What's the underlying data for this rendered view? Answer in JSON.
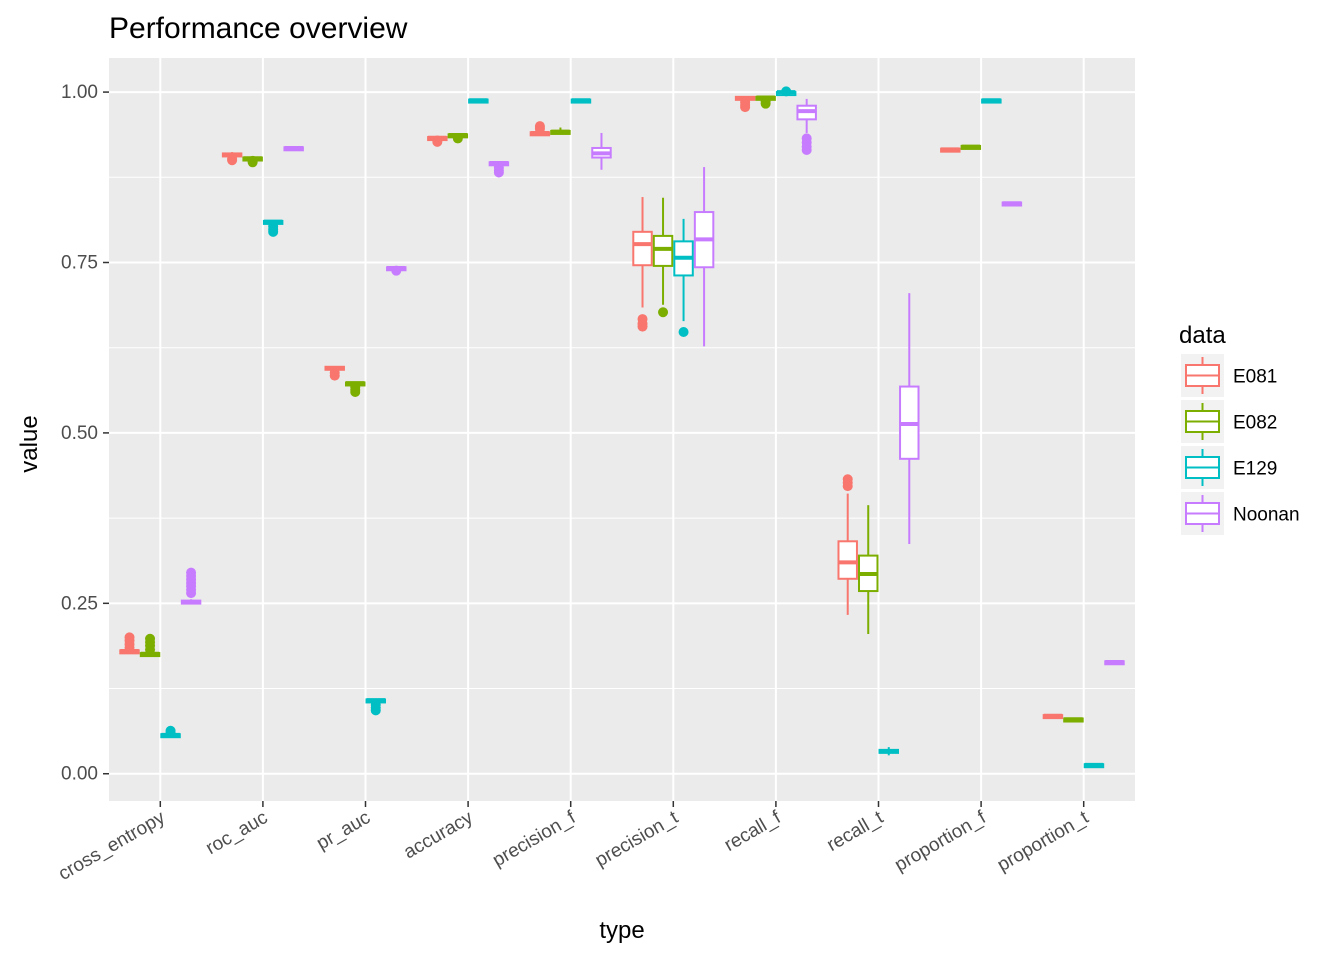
{
  "chart_data": {
    "type": "box",
    "title": "Performance overview",
    "xlabel": "type",
    "ylabel": "value",
    "ylim": [
      -0.04,
      1.05
    ],
    "yticks": [
      0.0,
      0.25,
      0.5,
      0.75,
      1.0
    ],
    "ytick_labels": [
      "0.00",
      "0.25",
      "0.50",
      "0.75",
      "1.00"
    ],
    "grid": true,
    "legend": {
      "title": "data",
      "placement": "right"
    },
    "categories": [
      "cross_entropy",
      "roc_auc",
      "pr_auc",
      "accuracy",
      "precision_f",
      "precision_t",
      "recall_f",
      "recall_t",
      "proportion_f",
      "proportion_t"
    ],
    "series": [
      {
        "name": "E081",
        "color": "#F8766D",
        "boxes": [
          {
            "category": "cross_entropy",
            "q1": 0.179,
            "median": 0.18,
            "q3": 0.181,
            "min": 0.179,
            "max": 0.183,
            "outliers": [
              0.185,
              0.19,
              0.195,
              0.2
            ]
          },
          {
            "category": "roc_auc",
            "q1": 0.906,
            "median": 0.908,
            "q3": 0.91,
            "min": 0.905,
            "max": 0.912,
            "outliers": [
              0.902,
              0.9
            ]
          },
          {
            "category": "pr_auc",
            "q1": 0.593,
            "median": 0.595,
            "q3": 0.597,
            "min": 0.592,
            "max": 0.598,
            "outliers": [
              0.588,
              0.584
            ]
          },
          {
            "category": "accuracy",
            "q1": 0.932,
            "median": 0.933,
            "q3": 0.934,
            "min": 0.931,
            "max": 0.935,
            "outliers": [
              0.929,
              0.927
            ]
          },
          {
            "category": "precision_f",
            "q1": 0.939,
            "median": 0.94,
            "q3": 0.941,
            "min": 0.938,
            "max": 0.942,
            "outliers": [
              0.946,
              0.95
            ]
          },
          {
            "category": "precision_t",
            "q1": 0.746,
            "median": 0.777,
            "q3": 0.795,
            "min": 0.684,
            "max": 0.846,
            "outliers": [
              0.667,
              0.66,
              0.656
            ]
          },
          {
            "category": "recall_f",
            "q1": 0.989,
            "median": 0.991,
            "q3": 0.993,
            "min": 0.988,
            "max": 0.994,
            "outliers": [
              0.985,
              0.981,
              0.978
            ]
          },
          {
            "category": "recall_t",
            "q1": 0.286,
            "median": 0.31,
            "q3": 0.341,
            "min": 0.233,
            "max": 0.411,
            "outliers": [
              0.422,
              0.427,
              0.432
            ]
          },
          {
            "category": "proportion_f",
            "q1": 0.915,
            "median": 0.916,
            "q3": 0.917,
            "min": 0.914,
            "max": 0.918,
            "outliers": []
          },
          {
            "category": "proportion_t",
            "q1": 0.084,
            "median": 0.085,
            "q3": 0.086,
            "min": 0.083,
            "max": 0.087,
            "outliers": []
          }
        ]
      },
      {
        "name": "E082",
        "color": "#7CAE00",
        "boxes": [
          {
            "category": "cross_entropy",
            "q1": 0.175,
            "median": 0.176,
            "q3": 0.177,
            "min": 0.174,
            "max": 0.179,
            "outliers": [
              0.182,
              0.188,
              0.193,
              0.198
            ]
          },
          {
            "category": "roc_auc",
            "q1": 0.902,
            "median": 0.903,
            "q3": 0.904,
            "min": 0.901,
            "max": 0.905,
            "outliers": [
              0.899,
              0.897
            ]
          },
          {
            "category": "pr_auc",
            "q1": 0.572,
            "median": 0.573,
            "q3": 0.574,
            "min": 0.571,
            "max": 0.575,
            "outliers": [
              0.567,
              0.563,
              0.56
            ]
          },
          {
            "category": "accuracy",
            "q1": 0.936,
            "median": 0.937,
            "q3": 0.938,
            "min": 0.935,
            "max": 0.939,
            "outliers": [
              0.932
            ]
          },
          {
            "category": "precision_f",
            "q1": 0.941,
            "median": 0.942,
            "q3": 0.943,
            "min": 0.94,
            "max": 0.948,
            "outliers": []
          },
          {
            "category": "precision_t",
            "q1": 0.745,
            "median": 0.77,
            "q3": 0.789,
            "min": 0.688,
            "max": 0.845,
            "outliers": [
              0.677
            ]
          },
          {
            "category": "recall_f",
            "q1": 0.991,
            "median": 0.992,
            "q3": 0.993,
            "min": 0.99,
            "max": 0.994,
            "outliers": [
              0.986,
              0.983
            ]
          },
          {
            "category": "recall_t",
            "q1": 0.268,
            "median": 0.293,
            "q3": 0.32,
            "min": 0.205,
            "max": 0.394,
            "outliers": []
          },
          {
            "category": "proportion_f",
            "q1": 0.919,
            "median": 0.92,
            "q3": 0.921,
            "min": 0.918,
            "max": 0.922,
            "outliers": []
          },
          {
            "category": "proportion_t",
            "q1": 0.079,
            "median": 0.08,
            "q3": 0.081,
            "min": 0.078,
            "max": 0.082,
            "outliers": []
          }
        ]
      },
      {
        "name": "E129",
        "color": "#00BFC4",
        "boxes": [
          {
            "category": "cross_entropy",
            "q1": 0.056,
            "median": 0.057,
            "q3": 0.058,
            "min": 0.055,
            "max": 0.059,
            "outliers": [
              0.061,
              0.063
            ]
          },
          {
            "category": "roc_auc",
            "q1": 0.809,
            "median": 0.81,
            "q3": 0.811,
            "min": 0.808,
            "max": 0.812,
            "outliers": [
              0.803,
              0.799,
              0.795
            ]
          },
          {
            "category": "pr_auc",
            "q1": 0.107,
            "median": 0.108,
            "q3": 0.109,
            "min": 0.106,
            "max": 0.11,
            "outliers": [
              0.101,
              0.097,
              0.093
            ]
          },
          {
            "category": "accuracy",
            "q1": 0.987,
            "median": 0.988,
            "q3": 0.989,
            "min": 0.986,
            "max": 0.99,
            "outliers": []
          },
          {
            "category": "precision_f",
            "q1": 0.987,
            "median": 0.988,
            "q3": 0.989,
            "min": 0.986,
            "max": 0.99,
            "outliers": []
          },
          {
            "category": "precision_t",
            "q1": 0.731,
            "median": 0.757,
            "q3": 0.781,
            "min": 0.664,
            "max": 0.814,
            "outliers": [
              0.648
            ]
          },
          {
            "category": "recall_f",
            "q1": 0.999,
            "median": 1.0,
            "q3": 1.0,
            "min": 0.998,
            "max": 1.0,
            "outliers": [
              1.001
            ]
          },
          {
            "category": "recall_t",
            "q1": 0.031,
            "median": 0.033,
            "q3": 0.035,
            "min": 0.027,
            "max": 0.039,
            "outliers": []
          },
          {
            "category": "proportion_f",
            "q1": 0.987,
            "median": 0.988,
            "q3": 0.989,
            "min": 0.986,
            "max": 0.99,
            "outliers": []
          },
          {
            "category": "proportion_t",
            "q1": 0.012,
            "median": 0.013,
            "q3": 0.014,
            "min": 0.011,
            "max": 0.015,
            "outliers": []
          }
        ]
      },
      {
        "name": "Noonan",
        "color": "#C77CFF",
        "boxes": [
          {
            "category": "cross_entropy",
            "q1": 0.25,
            "median": 0.252,
            "q3": 0.254,
            "min": 0.249,
            "max": 0.256,
            "outliers": [
              0.265,
              0.27,
              0.275,
              0.28,
              0.285,
              0.29,
              0.295
            ]
          },
          {
            "category": "roc_auc",
            "q1": 0.917,
            "median": 0.918,
            "q3": 0.919,
            "min": 0.916,
            "max": 0.92,
            "outliers": []
          },
          {
            "category": "pr_auc",
            "q1": 0.741,
            "median": 0.742,
            "q3": 0.743,
            "min": 0.74,
            "max": 0.744,
            "outliers": [
              0.738
            ]
          },
          {
            "category": "accuracy",
            "q1": 0.895,
            "median": 0.896,
            "q3": 0.897,
            "min": 0.894,
            "max": 0.898,
            "outliers": [
              0.889,
              0.885,
              0.882
            ]
          },
          {
            "category": "precision_f",
            "q1": 0.904,
            "median": 0.91,
            "q3": 0.918,
            "min": 0.886,
            "max": 0.94,
            "outliers": []
          },
          {
            "category": "precision_t",
            "q1": 0.743,
            "median": 0.784,
            "q3": 0.824,
            "min": 0.627,
            "max": 0.89,
            "outliers": []
          },
          {
            "category": "recall_f",
            "q1": 0.96,
            "median": 0.972,
            "q3": 0.98,
            "min": 0.94,
            "max": 0.99,
            "outliers": [
              0.932,
              0.926,
              0.92,
              0.915
            ]
          },
          {
            "category": "recall_t",
            "q1": 0.462,
            "median": 0.513,
            "q3": 0.568,
            "min": 0.337,
            "max": 0.705,
            "outliers": []
          },
          {
            "category": "proportion_f",
            "q1": 0.836,
            "median": 0.837,
            "q3": 0.838,
            "min": 0.835,
            "max": 0.839,
            "outliers": []
          },
          {
            "category": "proportion_t",
            "q1": 0.163,
            "median": 0.164,
            "q3": 0.165,
            "min": 0.162,
            "max": 0.166,
            "outliers": []
          }
        ]
      }
    ]
  }
}
